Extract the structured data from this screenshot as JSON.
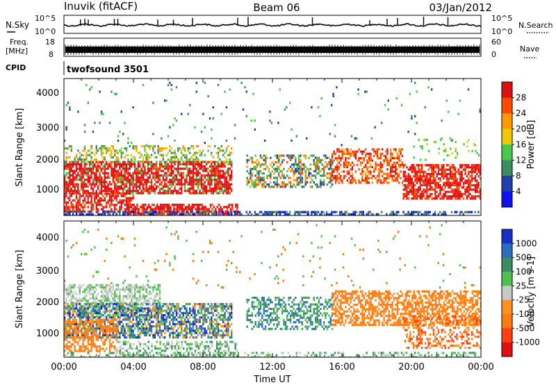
{
  "header": {
    "title": "Inuvik (fitACF)",
    "beam": "Beam 06",
    "date": "03/Jan/2012"
  },
  "noise_panel": {
    "left_label": "N.Sky",
    "right_label": "N.Search",
    "tick_top": "10^5",
    "tick_bottom": "10^0"
  },
  "freq_panel": {
    "left_label_1": "Freq.",
    "left_label_2": "[MHz]",
    "left_ticks": [
      "18",
      "8"
    ],
    "right_ticks": [
      "60",
      "0"
    ],
    "right_label": "Nave"
  },
  "cpid_panel": {
    "label": "CPID",
    "program": "twofsound 3501"
  },
  "chart_data": [
    {
      "type": "heatmap",
      "name": "power",
      "ylabel": "Slant Range [km]",
      "yticks": [
        "4000",
        "3000",
        "2000",
        "1000"
      ],
      "ylim": [
        180,
        4500
      ],
      "xlim": [
        0,
        24
      ],
      "colorbar": {
        "title": "Power [dB]",
        "labels": [
          "28",
          "24",
          "20",
          "16",
          "12",
          "8",
          "4"
        ],
        "colors": [
          "#e01010",
          "#ff4a00",
          "#ff9a00",
          "#f0c800",
          "#48c848",
          "#3c8c64",
          "#2040b0",
          "#1010f0"
        ]
      }
    },
    {
      "type": "heatmap",
      "name": "velocity",
      "ylabel": "Slant Range [km]",
      "yticks": [
        "4000",
        "3000",
        "2000",
        "1000"
      ],
      "ylim": [
        180,
        4500
      ],
      "xlim": [
        0,
        24
      ],
      "xticks": [
        "00:00",
        "04:00",
        "08:00",
        "12:00",
        "16:00",
        "20:00",
        "00:00"
      ],
      "xlabel": "Time UT",
      "colorbar": {
        "title": "Velocity [m s-1]",
        "labels": [
          "1000",
          "500",
          "100",
          "25",
          "-25",
          "-100",
          "-500",
          "-1000"
        ],
        "colors": [
          "#1830c8",
          "#2a6ec0",
          "#3c8c64",
          "#50c050",
          "#c8c8c8",
          "#ff9020",
          "#ff7a10",
          "#ff4010",
          "#e01010"
        ]
      }
    }
  ]
}
